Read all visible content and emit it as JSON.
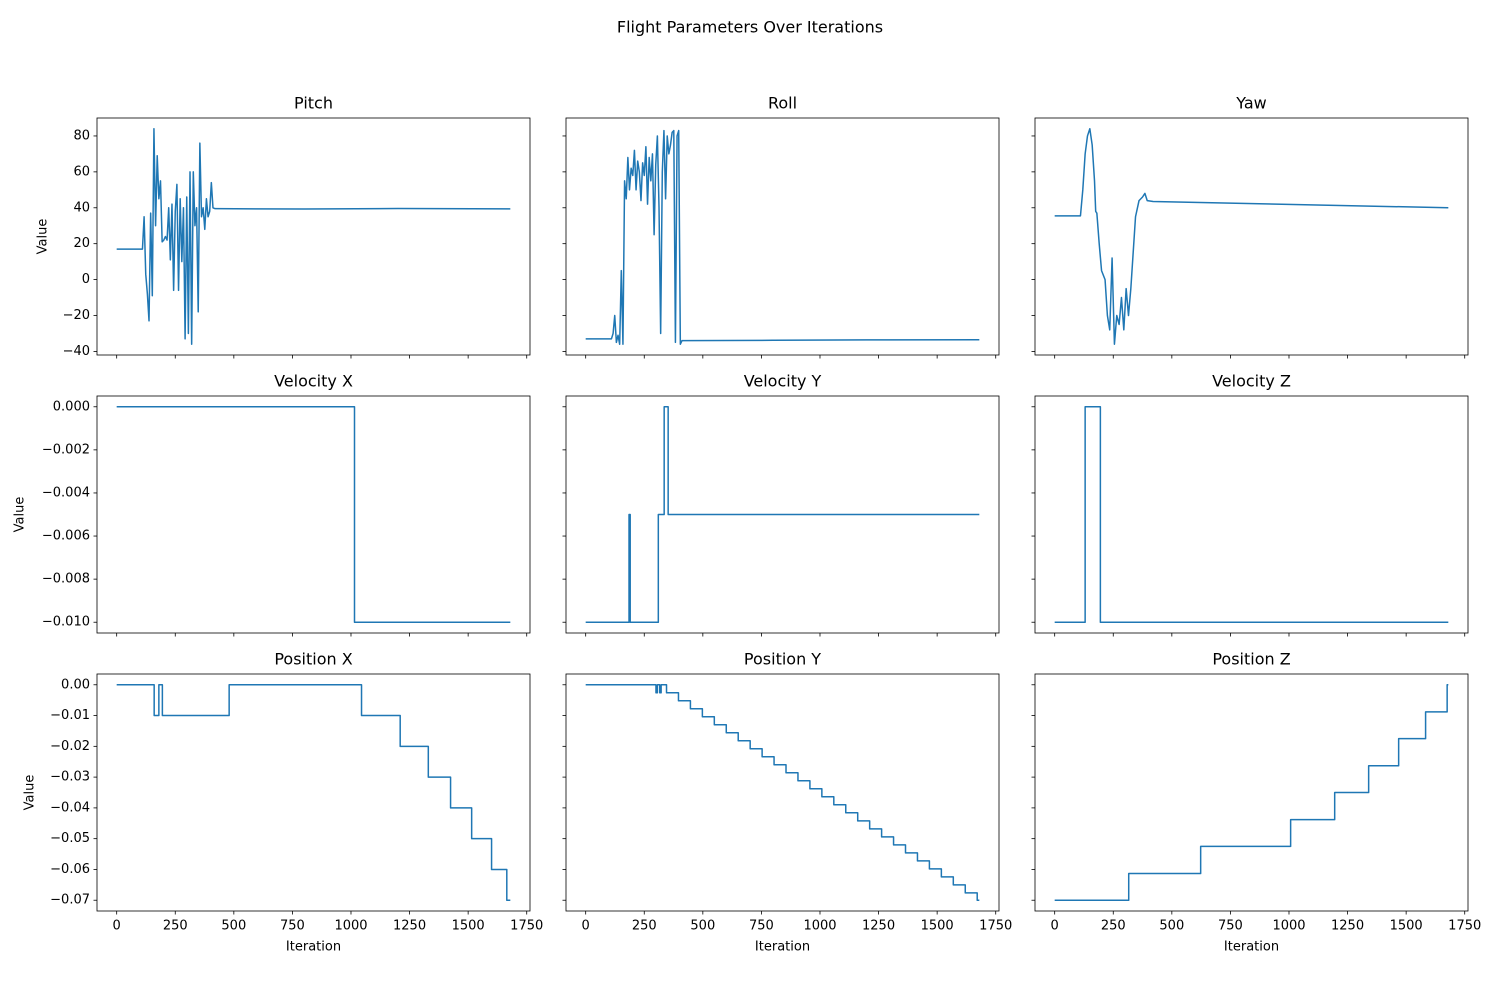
{
  "title": "Flight Parameters Over Iterations",
  "chart_data": [
    {
      "type": "line",
      "title": "Pitch",
      "ylabel": "Value",
      "color": "#1f77b4",
      "x": [
        0,
        110,
        117,
        124,
        131,
        138,
        145,
        152,
        159,
        166,
        173,
        180,
        187,
        194,
        201,
        208,
        215,
        222,
        229,
        236,
        243,
        250,
        257,
        264,
        271,
        278,
        285,
        292,
        299,
        306,
        313,
        320,
        327,
        334,
        341,
        348,
        355,
        362,
        369,
        376,
        383,
        390,
        397,
        404,
        411,
        420,
        800,
        1200,
        1680
      ],
      "values": [
        17,
        17,
        35,
        3,
        -8,
        -23,
        37,
        -9,
        84,
        30,
        69,
        45,
        55,
        21,
        22,
        24,
        22,
        40,
        11,
        42,
        -6,
        38,
        53,
        -6,
        45,
        10,
        40,
        -33,
        46,
        -30,
        60,
        -36,
        60,
        30,
        40,
        -18,
        76,
        35,
        40,
        28,
        45,
        35,
        38,
        54,
        40,
        39.5,
        39.3,
        39.6,
        39.4
      ],
      "xlim": [
        -84,
        1764
      ],
      "xticks": [
        0,
        250,
        500,
        750,
        1000,
        1250,
        1500,
        1750
      ],
      "ylim": [
        -42,
        90
      ],
      "yticks": [
        {
          "value": -40,
          "label": "−40"
        },
        {
          "value": -20,
          "label": "−20"
        },
        0,
        20,
        40,
        60,
        80
      ]
    },
    {
      "type": "line",
      "title": "Roll",
      "color": "#1f77b4",
      "x": [
        0,
        110,
        117,
        124,
        131,
        138,
        145,
        152,
        159,
        166,
        173,
        180,
        187,
        194,
        201,
        208,
        215,
        222,
        229,
        236,
        243,
        250,
        257,
        264,
        271,
        278,
        285,
        292,
        299,
        306,
        313,
        320,
        327,
        334,
        341,
        348,
        355,
        362,
        369,
        376,
        383,
        390,
        397,
        404,
        411,
        420,
        800,
        1200,
        1680
      ],
      "values": [
        -33,
        -33,
        -30,
        -20,
        -35,
        -31,
        -36,
        5,
        -36,
        55,
        45,
        68,
        50,
        62,
        58,
        72,
        50,
        66,
        60,
        44,
        65,
        58,
        74,
        42,
        68,
        55,
        70,
        25,
        64,
        80,
        40,
        -30,
        60,
        83,
        45,
        80,
        70,
        75,
        82,
        83,
        -35,
        80,
        83,
        -36,
        -34,
        -34,
        -33.8,
        -33.6,
        -33.5
      ],
      "xlim": [
        -84,
        1764
      ],
      "xticks": [
        0,
        250,
        500,
        750,
        1000,
        1250,
        1500,
        1750
      ],
      "ylim": [
        -42,
        90
      ],
      "yticks": [
        -40,
        -20,
        0,
        20,
        40,
        60,
        80
      ]
    },
    {
      "type": "line",
      "title": "Yaw",
      "color": "#1f77b4",
      "x": [
        0,
        110,
        120,
        130,
        140,
        150,
        160,
        170,
        175,
        180,
        190,
        200,
        215,
        225,
        235,
        245,
        255,
        265,
        275,
        285,
        295,
        305,
        315,
        325,
        335,
        345,
        360,
        375,
        385,
        395,
        420,
        1680
      ],
      "values": [
        35.5,
        35.5,
        50,
        70,
        80,
        84,
        75,
        55,
        38,
        37,
        20,
        5,
        0,
        -20,
        -28,
        12,
        -36,
        -20,
        -25,
        -10,
        -28,
        -5,
        -20,
        -5,
        15,
        35,
        44,
        46,
        48,
        44,
        43.5,
        40
      ],
      "xlim": [
        -84,
        1764
      ],
      "xticks": [
        0,
        250,
        500,
        750,
        1000,
        1250,
        1500,
        1750
      ],
      "ylim": [
        -42,
        90
      ],
      "yticks": [
        -40,
        -20,
        0,
        20,
        40,
        60,
        80
      ]
    },
    {
      "type": "line",
      "title": "Velocity X",
      "ylabel": "Value",
      "color": "#1f77b4",
      "x": [
        0,
        1015,
        1015,
        1680
      ],
      "values": [
        0,
        0,
        -0.01,
        -0.01
      ],
      "xlim": [
        -84,
        1764
      ],
      "xticks": [
        0,
        250,
        500,
        750,
        1000,
        1250,
        1500,
        1750
      ],
      "ylim": [
        -0.0105,
        0.0005
      ],
      "yticks": [
        {
          "value": -0.01,
          "label": "−0.010"
        },
        {
          "value": -0.008,
          "label": "−0.008"
        },
        {
          "value": -0.006,
          "label": "−0.006"
        },
        {
          "value": -0.004,
          "label": "−0.004"
        },
        {
          "value": -0.002,
          "label": "−0.002"
        },
        {
          "value": 0,
          "label": "0.000"
        }
      ]
    },
    {
      "type": "line",
      "title": "Velocity Y",
      "color": "#1f77b4",
      "x": [
        0,
        185,
        185,
        190,
        190,
        310,
        310,
        335,
        335,
        352,
        352,
        1680
      ],
      "values": [
        -0.01,
        -0.01,
        -0.005,
        -0.005,
        -0.01,
        -0.01,
        -0.005,
        -0.005,
        0,
        0,
        -0.005,
        -0.005
      ],
      "xlim": [
        -84,
        1764
      ],
      "xticks": [
        0,
        250,
        500,
        750,
        1000,
        1250,
        1500,
        1750
      ],
      "ylim": [
        -0.0105,
        0.0005
      ],
      "yticks": [
        -0.01,
        -0.008,
        -0.006,
        -0.004,
        -0.002,
        0
      ]
    },
    {
      "type": "line",
      "title": "Velocity Z",
      "color": "#1f77b4",
      "x": [
        0,
        130,
        130,
        195,
        195,
        1680
      ],
      "values": [
        -0.01,
        -0.01,
        0,
        0,
        -0.01,
        -0.01
      ],
      "xlim": [
        -84,
        1764
      ],
      "xticks": [
        0,
        250,
        500,
        750,
        1000,
        1250,
        1500,
        1750
      ],
      "ylim": [
        -0.0105,
        0.0005
      ],
      "yticks": [
        -0.01,
        -0.008,
        -0.006,
        -0.004,
        -0.002,
        0
      ]
    },
    {
      "type": "line",
      "title": "Position X",
      "ylabel": "Value",
      "xlabel": "Iteration",
      "color": "#1f77b4",
      "x": [
        0,
        160,
        160,
        180,
        180,
        195,
        195,
        480,
        480,
        1045,
        1045,
        1210,
        1210,
        1330,
        1330,
        1425,
        1425,
        1515,
        1515,
        1600,
        1600,
        1665,
        1665,
        1680
      ],
      "values": [
        0,
        0,
        -0.01,
        -0.01,
        0,
        0,
        -0.01,
        -0.01,
        0,
        0,
        -0.01,
        -0.01,
        -0.02,
        -0.02,
        -0.03,
        -0.03,
        -0.04,
        -0.04,
        -0.05,
        -0.05,
        -0.06,
        -0.06,
        -0.07,
        -0.07
      ],
      "xlim": [
        -84,
        1764
      ],
      "xticks": [
        0,
        250,
        500,
        750,
        1000,
        1250,
        1500,
        1750
      ],
      "ylim": [
        -0.0735,
        0.0035
      ],
      "yticks": [
        {
          "value": -0.07,
          "label": "−0.07"
        },
        {
          "value": -0.06,
          "label": "−0.06"
        },
        {
          "value": -0.05,
          "label": "−0.05"
        },
        {
          "value": -0.04,
          "label": "−0.04"
        },
        {
          "value": -0.03,
          "label": "−0.03"
        },
        {
          "value": -0.02,
          "label": "−0.02"
        },
        {
          "value": -0.01,
          "label": "−0.01"
        },
        {
          "value": 0,
          "label": "0.00"
        }
      ]
    },
    {
      "type": "line",
      "title": "Position Y",
      "xlabel": "Iteration",
      "color": "#1f77b4",
      "x": [
        0,
        300,
        300,
        306,
        306,
        316,
        316,
        322,
        322,
        345,
        345,
        396,
        396,
        447,
        447,
        498,
        498,
        549,
        549,
        600,
        600,
        651,
        651,
        702,
        702,
        753,
        753,
        804,
        804,
        855,
        855,
        906,
        906,
        957,
        957,
        1008,
        1008,
        1059,
        1059,
        1110,
        1110,
        1161,
        1161,
        1212,
        1212,
        1263,
        1263,
        1314,
        1314,
        1365,
        1365,
        1416,
        1416,
        1467,
        1467,
        1518,
        1518,
        1569,
        1569,
        1620,
        1620,
        1671,
        1671,
        1680
      ],
      "values": [
        0,
        0,
        -0.0026,
        -0.0026,
        0,
        0,
        -0.0026,
        -0.0026,
        0,
        0,
        -0.0026,
        -0.0026,
        -0.0052,
        -0.0052,
        -0.0078,
        -0.0078,
        -0.0104,
        -0.0104,
        -0.013,
        -0.013,
        -0.0156,
        -0.0156,
        -0.0182,
        -0.0182,
        -0.0208,
        -0.0208,
        -0.0234,
        -0.0234,
        -0.026,
        -0.026,
        -0.0286,
        -0.0286,
        -0.0312,
        -0.0312,
        -0.0338,
        -0.0338,
        -0.0364,
        -0.0364,
        -0.039,
        -0.039,
        -0.0416,
        -0.0416,
        -0.0442,
        -0.0442,
        -0.0468,
        -0.0468,
        -0.0494,
        -0.0494,
        -0.052,
        -0.052,
        -0.0546,
        -0.0546,
        -0.0572,
        -0.0572,
        -0.0598,
        -0.0598,
        -0.0624,
        -0.0624,
        -0.065,
        -0.065,
        -0.0676,
        -0.0676,
        -0.07,
        -0.07
      ],
      "xlim": [
        -84,
        1764
      ],
      "xticks": [
        0,
        250,
        500,
        750,
        1000,
        1250,
        1500,
        1750
      ],
      "ylim": [
        -0.0735,
        0.0035
      ],
      "yticks": [
        -0.07,
        -0.06,
        -0.05,
        -0.04,
        -0.03,
        -0.02,
        -0.01,
        0
      ]
    },
    {
      "type": "line",
      "title": "Position Z",
      "xlabel": "Iteration",
      "color": "#1f77b4",
      "x": [
        0,
        316,
        316,
        623,
        623,
        1007,
        1007,
        1195,
        1195,
        1340,
        1340,
        1468,
        1468,
        1583,
        1583,
        1675,
        1675,
        1680
      ],
      "values": [
        -0.07,
        -0.07,
        -0.0613,
        -0.0613,
        -0.0525,
        -0.0525,
        -0.0438,
        -0.0438,
        -0.035,
        -0.035,
        -0.0263,
        -0.0263,
        -0.0175,
        -0.0175,
        -0.0088,
        -0.0088,
        0,
        0
      ],
      "xlim": [
        -84,
        1764
      ],
      "xticks": [
        0,
        250,
        500,
        750,
        1000,
        1250,
        1500,
        1750
      ],
      "ylim": [
        -0.0735,
        0.0035
      ],
      "yticks": [
        -0.07,
        -0.06,
        -0.05,
        -0.04,
        -0.03,
        -0.02,
        -0.01,
        0
      ]
    }
  ]
}
